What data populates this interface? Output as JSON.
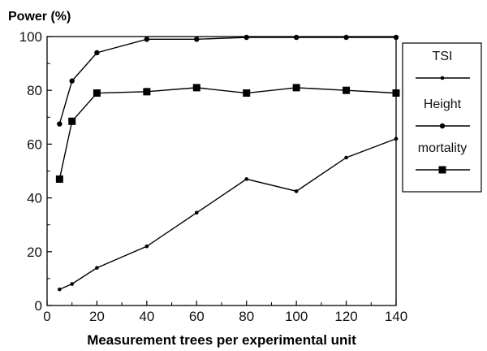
{
  "chart_data": {
    "type": "line",
    "title": "",
    "ylabel": "Power (%)",
    "xlabel": "Measurement trees per experimental unit",
    "xlim": [
      0,
      140
    ],
    "ylim": [
      0,
      100
    ],
    "xticks": [
      0,
      20,
      40,
      60,
      80,
      100,
      120,
      140
    ],
    "yticks": [
      0,
      20,
      40,
      60,
      80,
      100
    ],
    "x_tick_labels": [
      "0",
      "20",
      "40",
      "60",
      "80",
      "100",
      "120",
      "140"
    ],
    "y_tick_labels": [
      "0",
      "20",
      "40",
      "60",
      "80",
      "100"
    ],
    "grid": false,
    "legend_position": "right",
    "series": [
      {
        "name": "TSI",
        "marker": "small-dot",
        "color": "#000000",
        "x": [
          5,
          10,
          20,
          40,
          60,
          80,
          100,
          120,
          140
        ],
        "y": [
          6,
          8,
          14,
          22,
          34.5,
          47,
          42.5,
          55,
          62
        ]
      },
      {
        "name": "Height",
        "marker": "dot",
        "color": "#000000",
        "x": [
          5,
          10,
          20,
          40,
          60,
          80,
          100,
          120,
          140
        ],
        "y": [
          67.5,
          83.5,
          94,
          99,
          99,
          99.7,
          99.7,
          99.7,
          99.7
        ]
      },
      {
        "name": "mortality",
        "marker": "square",
        "color": "#000000",
        "x": [
          5,
          10,
          20,
          40,
          60,
          80,
          100,
          120,
          140
        ],
        "y": [
          47,
          68.5,
          79,
          79.5,
          81,
          79,
          81,
          80,
          79
        ]
      }
    ]
  }
}
